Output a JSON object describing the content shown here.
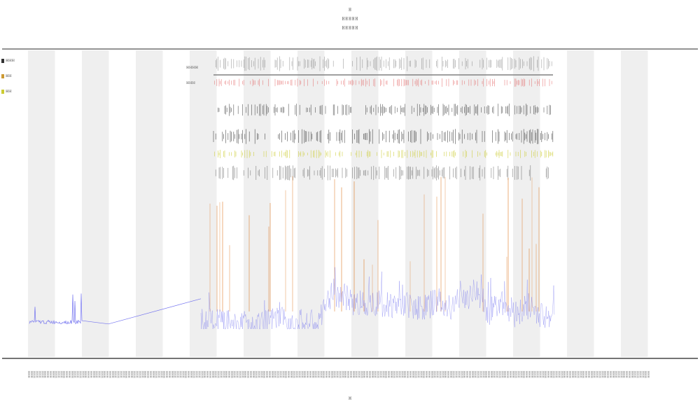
{
  "chart_data": {
    "type": "line",
    "title": "ℍ",
    "subtitles": [
      "ℍ ℍ ℍ ℍ ℍ",
      "ℍ ℍ ℍ ℍ ℍ"
    ],
    "xlabel": "ℍ",
    "ylabel": "",
    "grid": "alternating-vertical-bands",
    "legend": {
      "placement": "top-left",
      "entries": [
        {
          "name": "ℍℍℍ",
          "color": "#333333"
        },
        {
          "name": "ℍℍ",
          "color": "#cc9933"
        },
        {
          "name": "ℍℍ",
          "color": "#cccc33"
        }
      ]
    },
    "track_labels": [
      "ℍℍℍℍ",
      "ℍℍℍ"
    ],
    "band_count": 12,
    "series": [
      {
        "name": "",
        "color": "#6666ee",
        "role": "baseline signal",
        "x": [
          0.0,
          0.02,
          0.04,
          0.06,
          0.08,
          0.1,
          0.12,
          0.14,
          0.16,
          0.2,
          0.24,
          0.26,
          0.28,
          0.3,
          0.4,
          0.5,
          0.55,
          0.6,
          0.65,
          0.7,
          0.75,
          0.8,
          0.85,
          0.9,
          0.93,
          0.95,
          0.97,
          1.0
        ],
        "y": [
          0.05,
          0.05,
          0.04,
          0.05,
          0.06,
          0.04,
          0.08,
          0.05,
          0.05,
          0.04,
          0.3,
          0.25,
          0.2,
          0.22,
          0.2,
          0.18,
          0.2,
          0.16,
          0.22,
          0.18,
          0.24,
          0.3,
          0.14,
          0.22,
          0.12,
          0.18,
          0.1,
          0.12
        ]
      },
      {
        "name": "",
        "color": "#e08030",
        "role": "orange spikes"
      },
      {
        "name": "",
        "color": "#222222",
        "role": "black tick tracks"
      },
      {
        "name": "",
        "color": "#e05050",
        "role": "red tick track"
      },
      {
        "name": "",
        "color": "#cccc33",
        "role": "yellow tick track"
      }
    ],
    "x_tick_label_count": 230
  }
}
